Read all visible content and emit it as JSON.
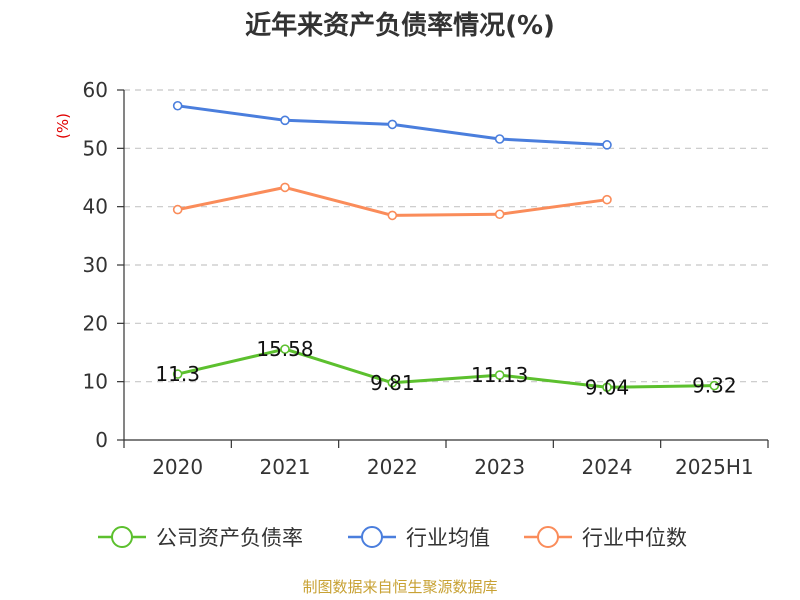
{
  "chart_data": {
    "type": "line",
    "title": "近年来资产负债率情况(%)",
    "ylabel": "(%)",
    "categories": [
      "2020",
      "2021",
      "2022",
      "2023",
      "2024",
      "2025H1"
    ],
    "ylim": [
      0,
      60
    ],
    "yticks": [
      0,
      10,
      20,
      30,
      40,
      50,
      60
    ],
    "grid": true,
    "legend_position": "bottom",
    "series": [
      {
        "name": "公司资产负债率",
        "color": "#5cc02e",
        "values": [
          11.3,
          15.58,
          9.81,
          11.13,
          9.04,
          9.32
        ],
        "labels": [
          "11.3",
          "15.58",
          "9.81",
          "11.13",
          "9.04",
          "9.32"
        ]
      },
      {
        "name": "行业均值",
        "color": "#4a7edd",
        "values": [
          57.3,
          54.8,
          54.1,
          51.6,
          50.6,
          null
        ]
      },
      {
        "name": "行业中位数",
        "color": "#fa8c5a",
        "values": [
          39.5,
          43.3,
          38.5,
          38.7,
          41.2,
          null
        ]
      }
    ]
  },
  "source": "制图数据来自恒生聚源数据库"
}
